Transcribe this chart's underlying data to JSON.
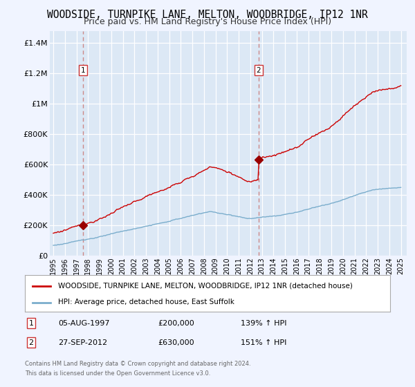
{
  "title": "WOODSIDE, TURNPIKE LANE, MELTON, WOODBRIDGE, IP12 1NR",
  "subtitle": "Price paid vs. HM Land Registry's House Price Index (HPI)",
  "title_fontsize": 10.5,
  "subtitle_fontsize": 9,
  "background_color": "#f0f4ff",
  "plot_background_color": "#dce8f5",
  "grid_color": "#ffffff",
  "ylabel_values": [
    "£0",
    "£200K",
    "£400K",
    "£600K",
    "£800K",
    "£1M",
    "£1.2M",
    "£1.4M"
  ],
  "ytick_values": [
    0,
    200000,
    400000,
    600000,
    800000,
    1000000,
    1200000,
    1400000
  ],
  "ylim": [
    0,
    1480000
  ],
  "sale1_year": 1997.58,
  "sale1_price": 200000,
  "sale1_label": "1",
  "sale1_date": "05-AUG-1997",
  "sale2_year": 2012.73,
  "sale2_price": 630000,
  "sale2_label": "2",
  "sale2_date": "27-SEP-2012",
  "house_line_color": "#cc0000",
  "hpi_line_color": "#7aadcc",
  "marker_color": "#990000",
  "dashed_line_color": "#cc8888",
  "legend_label_house": "WOODSIDE, TURNPIKE LANE, MELTON, WOODBRIDGE, IP12 1NR (detached house)",
  "legend_label_hpi": "HPI: Average price, detached house, East Suffolk",
  "footer1": "Contains HM Land Registry data © Crown copyright and database right 2024.",
  "footer2": "This data is licensed under the Open Government Licence v3.0.",
  "table_row1": [
    "1",
    "05-AUG-1997",
    "£200,000",
    "139% ↑ HPI"
  ],
  "table_row2": [
    "2",
    "27-SEP-2012",
    "£630,000",
    "151% ↑ HPI"
  ]
}
